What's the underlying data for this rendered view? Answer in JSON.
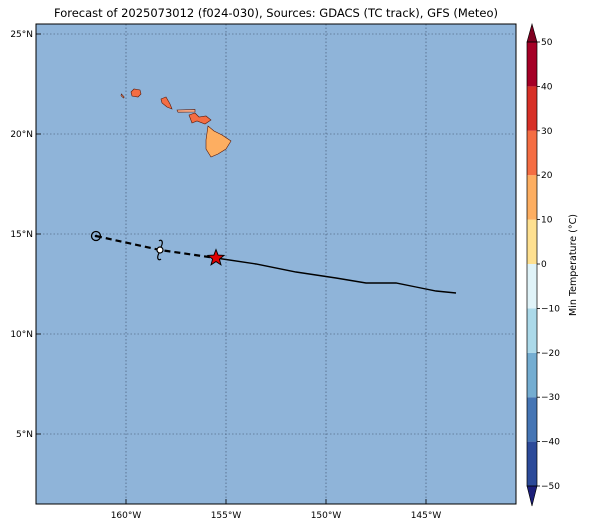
{
  "title": "Forecast of 2025073012 (f024-030), Sources: GDACS (TC track), GFS (Meteo)",
  "map": {
    "lon_range": [
      -164.5,
      -140.5
    ],
    "lat_range": [
      1.5,
      25.5
    ],
    "ocean_color": "#8fb4d9",
    "grid": true,
    "x_ticks": [
      {
        "lon": -160,
        "label": "160°W"
      },
      {
        "lon": -155,
        "label": "155°W"
      },
      {
        "lon": -150,
        "label": "150°W"
      },
      {
        "lon": -145,
        "label": "145°W"
      }
    ],
    "y_ticks": [
      {
        "lat": 5,
        "label": "5°N"
      },
      {
        "lat": 10,
        "label": "10°N"
      },
      {
        "lat": 15,
        "label": "15°N"
      },
      {
        "lat": 20,
        "label": "20°N"
      },
      {
        "lat": 25,
        "label": "25°N"
      }
    ]
  },
  "chart_data": {
    "type": "map",
    "track_past": [
      [
        -161.5,
        14.9
      ],
      [
        -158.3,
        14.2
      ],
      [
        -155.5,
        13.8
      ]
    ],
    "track_forecast": [
      [
        -155.5,
        13.8
      ],
      [
        -153.5,
        13.5
      ],
      [
        -151.5,
        13.1
      ],
      [
        -149.5,
        12.8
      ],
      [
        -148,
        12.55
      ],
      [
        -146.5,
        12.55
      ],
      [
        -145.5,
        12.35
      ],
      [
        -144.5,
        12.15
      ],
      [
        -143.5,
        12.05
      ]
    ],
    "start_marker": {
      "type": "circle",
      "lon": -161.5,
      "lat": 14.9
    },
    "cyclone_symbol": {
      "type": "tropical-storm-icon",
      "lon": -158.3,
      "lat": 14.2
    },
    "current_position": {
      "type": "star",
      "lon": -155.5,
      "lat": 13.8,
      "color": "#e00000"
    },
    "islands": [
      {
        "name": "Niihau",
        "lon": -160.15,
        "lat": 21.9
      },
      {
        "name": "Kauai",
        "lon": -159.5,
        "lat": 22.05
      },
      {
        "name": "Oahu",
        "lon": -158.0,
        "lat": 21.5
      },
      {
        "name": "Molokai",
        "lon": -157.0,
        "lat": 21.15
      },
      {
        "name": "Maui",
        "lon": -156.35,
        "lat": 20.8
      },
      {
        "name": "Hawaii",
        "lon": -155.5,
        "lat": 19.6
      }
    ],
    "island_colors": [
      "#f4a582",
      "#f46d43",
      "#fdae61"
    ]
  },
  "colorbar": {
    "label": "Min Temperature (°C)",
    "min": -55,
    "max": 55,
    "tick_values": [
      -50,
      -40,
      -30,
      -20,
      -10,
      0,
      10,
      20,
      30,
      40,
      50
    ],
    "tick_labels": [
      "−50",
      "−40",
      "−30",
      "−20",
      "−10",
      "0",
      "10",
      "20",
      "30",
      "40",
      "50"
    ],
    "levels": [
      -50,
      -40,
      -30,
      -20,
      -10,
      0,
      10,
      20,
      30,
      40,
      50
    ],
    "colors": [
      "#313695",
      "#2c4a99",
      "#4575b4",
      "#74add1",
      "#abd9e9",
      "#e0f3f8",
      "#fee090",
      "#fdae61",
      "#f46d43",
      "#d73027",
      "#a50026"
    ],
    "extend_low_color": "#1c1f7a",
    "extend_high_color": "#7f0020"
  }
}
